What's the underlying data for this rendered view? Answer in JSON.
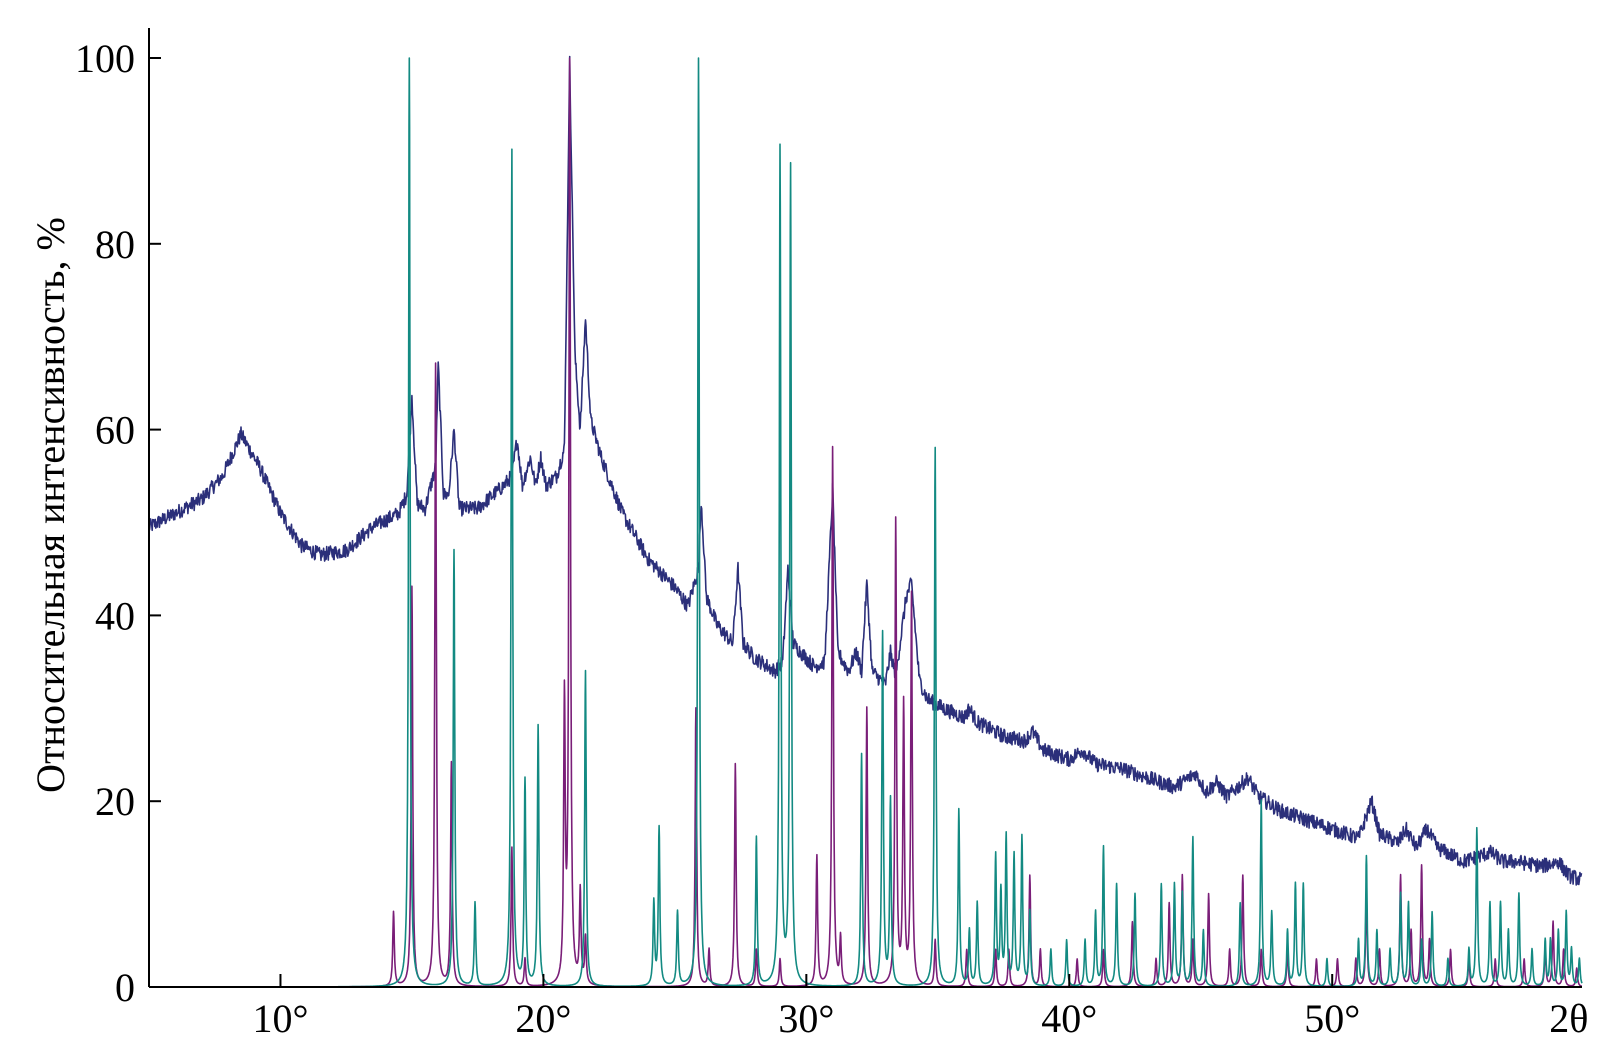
{
  "chart_data": {
    "type": "line",
    "title": "",
    "ylabel": "Относительная интенсивность, %",
    "xlabel": "",
    "x_unit_label": "2θ",
    "xlim": [
      5,
      59.5
    ],
    "ylim": [
      0,
      103
    ],
    "grid": false,
    "legend": "none",
    "x_ticks": [
      {
        "value": 10,
        "label": "10°"
      },
      {
        "value": 20,
        "label": "20°"
      },
      {
        "value": 30,
        "label": "30°"
      },
      {
        "value": 40,
        "label": "40°"
      },
      {
        "value": 50,
        "label": "50°"
      },
      {
        "value": 59,
        "label": "2θ"
      }
    ],
    "y_ticks": [
      {
        "value": 0,
        "label": "0"
      },
      {
        "value": 20,
        "label": "20"
      },
      {
        "value": 40,
        "label": "40"
      },
      {
        "value": 60,
        "label": "60"
      },
      {
        "value": 80,
        "label": "80"
      },
      {
        "value": 100,
        "label": "100"
      }
    ],
    "series": [
      {
        "color": "#2b2f7a",
        "kind": "measured",
        "points": [
          [
            5,
            49.5
          ],
          [
            6,
            51
          ],
          [
            7,
            52.5
          ],
          [
            7.8,
            55
          ],
          [
            8.5,
            59.5
          ],
          [
            9.2,
            56
          ],
          [
            10,
            51
          ],
          [
            10.8,
            47.5
          ],
          [
            11.5,
            46.5
          ],
          [
            12.5,
            47
          ],
          [
            13.5,
            49.5
          ],
          [
            14.5,
            51
          ],
          [
            14.8,
            53
          ],
          [
            15.0,
            63.5
          ],
          [
            15.2,
            52
          ],
          [
            15.5,
            51.5
          ],
          [
            15.9,
            56
          ],
          [
            16.0,
            67
          ],
          [
            16.2,
            53
          ],
          [
            16.4,
            53
          ],
          [
            16.6,
            60
          ],
          [
            16.8,
            51.5
          ],
          [
            17.5,
            51.5
          ],
          [
            18.5,
            54
          ],
          [
            18.8,
            55
          ],
          [
            19.0,
            59
          ],
          [
            19.2,
            54
          ],
          [
            19.5,
            57
          ],
          [
            19.7,
            54
          ],
          [
            19.9,
            57
          ],
          [
            20.1,
            54
          ],
          [
            20.5,
            55
          ],
          [
            20.8,
            58
          ],
          [
            21.0,
            99.5
          ],
          [
            21.2,
            68
          ],
          [
            21.4,
            60
          ],
          [
            21.6,
            72
          ],
          [
            21.8,
            61
          ],
          [
            22.2,
            57
          ],
          [
            23,
            51
          ],
          [
            24,
            46
          ],
          [
            24.5,
            44.5
          ],
          [
            25,
            43
          ],
          [
            25.5,
            41
          ],
          [
            25.9,
            45
          ],
          [
            26.0,
            52.5
          ],
          [
            26.2,
            42
          ],
          [
            26.6,
            39
          ],
          [
            27.2,
            37
          ],
          [
            27.4,
            45
          ],
          [
            27.6,
            37
          ],
          [
            28,
            35.5
          ],
          [
            28.8,
            34
          ],
          [
            29.1,
            35
          ],
          [
            29.3,
            45
          ],
          [
            29.5,
            37
          ],
          [
            29.8,
            36
          ],
          [
            30.3,
            34.5
          ],
          [
            30.7,
            35
          ],
          [
            31.0,
            53.5
          ],
          [
            31.2,
            36
          ],
          [
            31.6,
            34
          ],
          [
            31.9,
            36
          ],
          [
            32.1,
            34
          ],
          [
            32.3,
            43.5
          ],
          [
            32.5,
            34
          ],
          [
            33.0,
            32.5
          ],
          [
            33.2,
            36
          ],
          [
            33.4,
            33.5
          ],
          [
            33.8,
            42
          ],
          [
            34.0,
            43.5
          ],
          [
            34.3,
            33
          ],
          [
            34.6,
            31
          ],
          [
            35.2,
            30
          ],
          [
            36,
            29
          ],
          [
            36.2,
            30
          ],
          [
            36.5,
            28.5
          ],
          [
            37.5,
            27
          ],
          [
            38.3,
            26.5
          ],
          [
            38.6,
            27.5
          ],
          [
            39,
            25.5
          ],
          [
            40,
            24.5
          ],
          [
            40.5,
            25.5
          ],
          [
            41,
            24
          ],
          [
            42,
            23.5
          ],
          [
            43,
            22.5
          ],
          [
            44,
            21.5
          ],
          [
            44.8,
            23
          ],
          [
            45.2,
            21
          ],
          [
            45.6,
            22
          ],
          [
            46,
            20.5
          ],
          [
            46.8,
            22.5
          ],
          [
            47.2,
            20.5
          ],
          [
            48,
            19
          ],
          [
            49,
            18
          ],
          [
            50,
            17
          ],
          [
            51,
            16
          ],
          [
            51.5,
            20
          ],
          [
            51.8,
            16.5
          ],
          [
            52.5,
            15.5
          ],
          [
            52.8,
            17
          ],
          [
            53.2,
            15
          ],
          [
            53.6,
            17
          ],
          [
            54,
            15
          ],
          [
            55,
            13.5
          ],
          [
            56,
            14.5
          ],
          [
            56.5,
            13.5
          ],
          [
            57,
            13.5
          ],
          [
            58,
            13
          ],
          [
            58.6,
            13.5
          ],
          [
            59,
            12
          ],
          [
            59.5,
            11.5
          ]
        ]
      },
      {
        "color": "#7a1e78",
        "kind": "reference",
        "peaks": [
          [
            14.3,
            8
          ],
          [
            15.0,
            43
          ],
          [
            15.9,
            67
          ],
          [
            16.5,
            24
          ],
          [
            18.8,
            15
          ],
          [
            19.3,
            3
          ],
          [
            20.8,
            30
          ],
          [
            21.0,
            100
          ],
          [
            21.4,
            10
          ],
          [
            21.6,
            5
          ],
          [
            25.8,
            30
          ],
          [
            26.3,
            4
          ],
          [
            27.3,
            24
          ],
          [
            28.1,
            4
          ],
          [
            29.0,
            3
          ],
          [
            30.4,
            14
          ],
          [
            31.0,
            58
          ],
          [
            31.3,
            5
          ],
          [
            32.3,
            30
          ],
          [
            33.4,
            50
          ],
          [
            33.7,
            30
          ],
          [
            34.0,
            42
          ],
          [
            34.9,
            5
          ],
          [
            36.1,
            4
          ],
          [
            37.2,
            4
          ],
          [
            37.7,
            4
          ],
          [
            38.5,
            12
          ],
          [
            38.9,
            4
          ],
          [
            40.3,
            3
          ],
          [
            41.3,
            4
          ],
          [
            42.4,
            7
          ],
          [
            43.3,
            3
          ],
          [
            43.8,
            9
          ],
          [
            44.3,
            12
          ],
          [
            44.7,
            5
          ],
          [
            45.3,
            10
          ],
          [
            46.1,
            4
          ],
          [
            46.6,
            12
          ],
          [
            47.3,
            4
          ],
          [
            48.3,
            4
          ],
          [
            49.4,
            3
          ],
          [
            50.2,
            3
          ],
          [
            50.9,
            3
          ],
          [
            51.3,
            10
          ],
          [
            51.8,
            4
          ],
          [
            52.6,
            12
          ],
          [
            53.0,
            6
          ],
          [
            53.4,
            13
          ],
          [
            53.7,
            5
          ],
          [
            54.5,
            4
          ],
          [
            55.2,
            3
          ],
          [
            56.2,
            3
          ],
          [
            57.3,
            3
          ],
          [
            58.1,
            4
          ],
          [
            58.4,
            7
          ],
          [
            58.8,
            4
          ],
          [
            59.3,
            2
          ]
        ]
      },
      {
        "color": "#138a82",
        "kind": "reference",
        "peaks": [
          [
            14.9,
            100
          ],
          [
            16.6,
            47
          ],
          [
            17.4,
            9
          ],
          [
            18.8,
            90
          ],
          [
            19.3,
            22
          ],
          [
            19.8,
            28
          ],
          [
            21.6,
            34
          ],
          [
            24.2,
            9
          ],
          [
            24.4,
            17
          ],
          [
            25.1,
            8
          ],
          [
            25.9,
            100
          ],
          [
            28.1,
            16
          ],
          [
            29.0,
            90
          ],
          [
            29.4,
            88
          ],
          [
            32.1,
            25
          ],
          [
            32.9,
            38
          ],
          [
            33.2,
            20
          ],
          [
            34.9,
            58
          ],
          [
            35.8,
            19
          ],
          [
            36.2,
            6
          ],
          [
            36.5,
            9
          ],
          [
            37.2,
            14
          ],
          [
            37.4,
            10
          ],
          [
            37.6,
            16
          ],
          [
            37.9,
            14
          ],
          [
            38.2,
            16
          ],
          [
            38.5,
            8
          ],
          [
            39.3,
            4
          ],
          [
            39.9,
            5
          ],
          [
            40.6,
            5
          ],
          [
            41.0,
            8
          ],
          [
            41.3,
            15
          ],
          [
            41.8,
            11
          ],
          [
            42.5,
            10
          ],
          [
            43.5,
            11
          ],
          [
            44.0,
            11
          ],
          [
            44.3,
            10
          ],
          [
            44.7,
            16
          ],
          [
            45.1,
            6
          ],
          [
            46.5,
            9
          ],
          [
            47.3,
            20
          ],
          [
            47.7,
            8
          ],
          [
            48.3,
            6
          ],
          [
            48.6,
            11
          ],
          [
            48.9,
            11
          ],
          [
            49.8,
            3
          ],
          [
            51.0,
            5
          ],
          [
            51.3,
            14
          ],
          [
            51.7,
            6
          ],
          [
            52.2,
            4
          ],
          [
            52.6,
            10
          ],
          [
            52.9,
            9
          ],
          [
            53.4,
            5
          ],
          [
            53.8,
            8
          ],
          [
            54.4,
            3
          ],
          [
            55.2,
            4
          ],
          [
            55.5,
            17
          ],
          [
            56.0,
            9
          ],
          [
            56.4,
            9
          ],
          [
            56.7,
            6
          ],
          [
            57.1,
            10
          ],
          [
            57.6,
            4
          ],
          [
            58.1,
            5
          ],
          [
            58.3,
            5
          ],
          [
            58.6,
            6
          ],
          [
            58.9,
            8
          ],
          [
            59.1,
            4
          ],
          [
            59.4,
            3
          ]
        ]
      }
    ]
  }
}
